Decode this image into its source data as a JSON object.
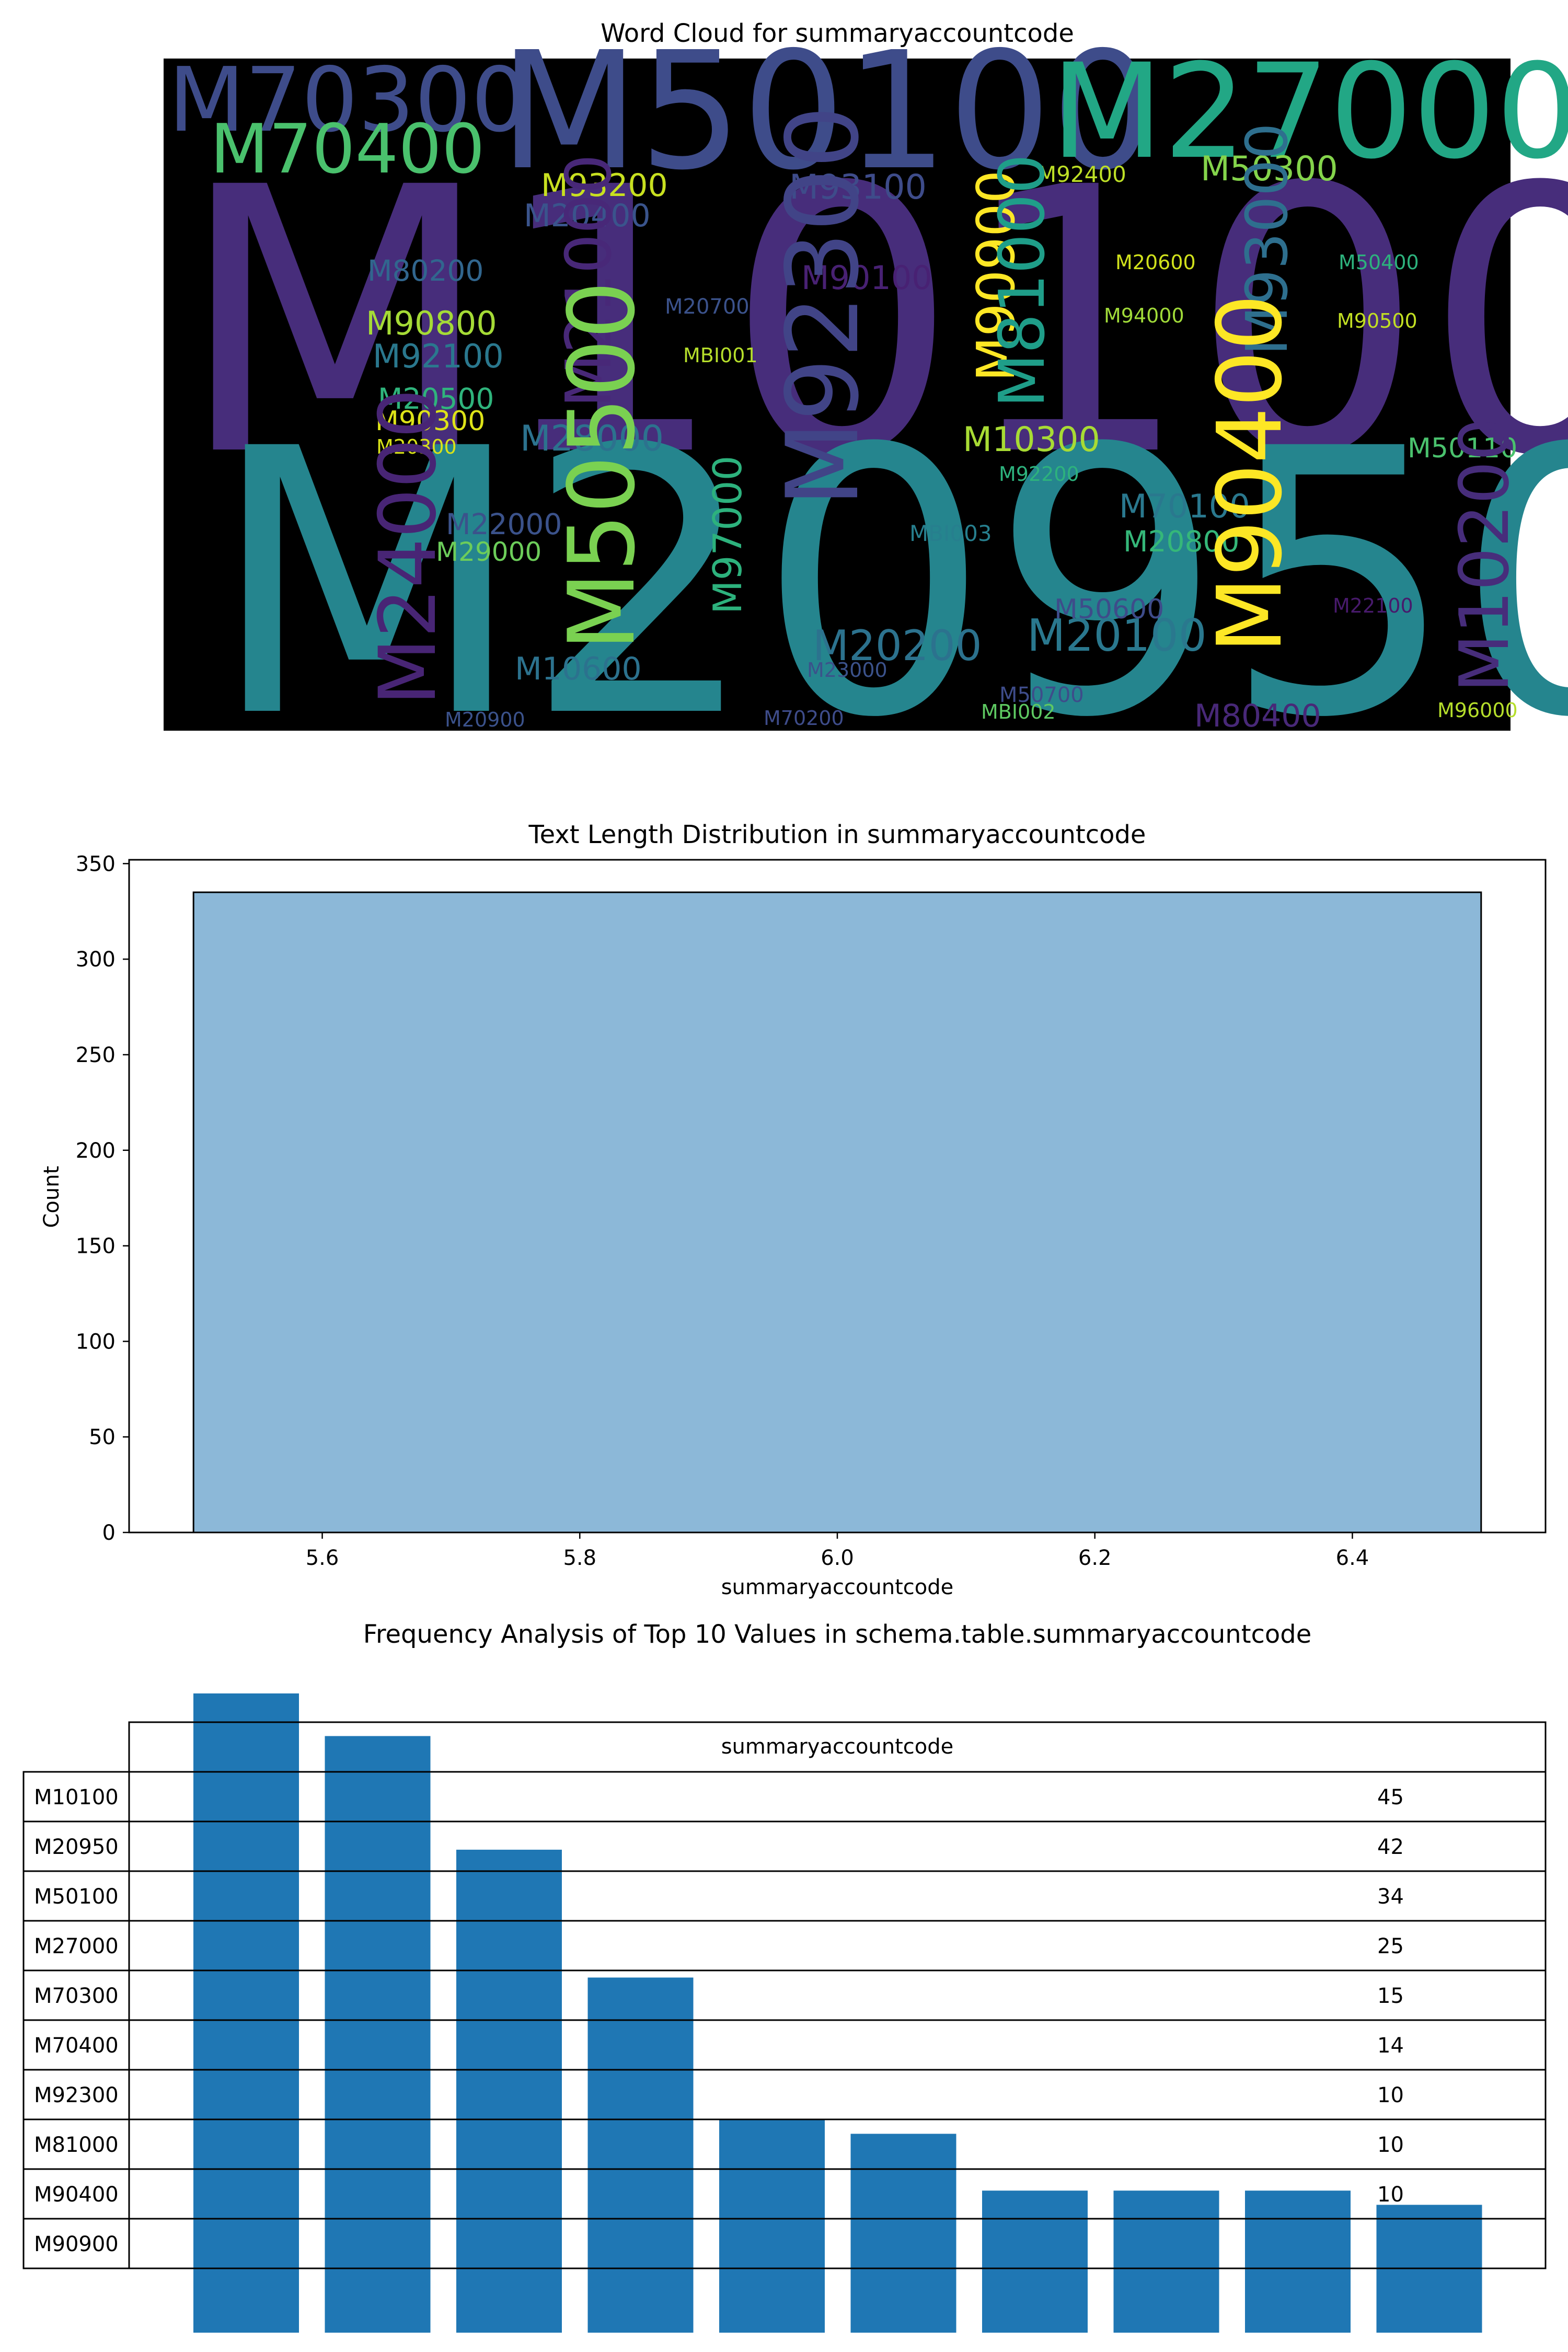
{
  "chart_data": [
    {
      "type": "wordcloud",
      "title": "Word Cloud for summaryaccountcode",
      "background": "#000000",
      "words": [
        {
          "text": "M10100",
          "color": "#472d7b"
        },
        {
          "text": "M20950",
          "color": "#25858e"
        },
        {
          "text": "M50100",
          "color": "#3e4c8a"
        },
        {
          "text": "M27000",
          "color": "#22a785"
        },
        {
          "text": "M70300",
          "color": "#3e4c8a"
        },
        {
          "text": "M70400",
          "color": "#4ac16d"
        },
        {
          "text": "M93200",
          "color": "#c8e020"
        },
        {
          "text": "M93100",
          "color": "#3e4c8a"
        },
        {
          "text": "M92400",
          "color": "#bddf26"
        },
        {
          "text": "M50300",
          "color": "#84d44b"
        },
        {
          "text": "M20400",
          "color": "#3a548c"
        },
        {
          "text": "M80200",
          "color": "#31668e"
        },
        {
          "text": "M90800",
          "color": "#a5db36"
        },
        {
          "text": "M92100",
          "color": "#2a788e"
        },
        {
          "text": "M20500",
          "color": "#2fb47c"
        },
        {
          "text": "M90300",
          "color": "#dde318"
        },
        {
          "text": "M20300",
          "color": "#d8e219"
        },
        {
          "text": "M28000",
          "color": "#2c728e"
        },
        {
          "text": "M21000",
          "color": "#482878"
        },
        {
          "text": "M20700",
          "color": "#3b528b"
        },
        {
          "text": "MBI001",
          "color": "#b5de2b"
        },
        {
          "text": "M90100",
          "color": "#482173"
        },
        {
          "text": "M92300",
          "color": "#414487"
        },
        {
          "text": "M90900",
          "color": "#fde725"
        },
        {
          "text": "M81000",
          "color": "#1f9e89"
        },
        {
          "text": "M94000",
          "color": "#a0da39"
        },
        {
          "text": "M20600",
          "color": "#d0e11c"
        },
        {
          "text": "M93000",
          "color": "#2e6f8e"
        },
        {
          "text": "M50400",
          "color": "#2db27d"
        },
        {
          "text": "M90500",
          "color": "#c2df23"
        },
        {
          "text": "M10300",
          "color": "#a8db34"
        },
        {
          "text": "M50110",
          "color": "#4ac16d"
        },
        {
          "text": "M92200",
          "color": "#2db27d"
        },
        {
          "text": "M24000",
          "color": "#482575"
        },
        {
          "text": "M22000",
          "color": "#3b528b"
        },
        {
          "text": "M29000",
          "color": "#6ccd5a"
        },
        {
          "text": "M50500",
          "color": "#7ad151"
        },
        {
          "text": "M97000",
          "color": "#2db27d"
        },
        {
          "text": "MBI003",
          "color": "#277f8e"
        },
        {
          "text": "M70100",
          "color": "#2a788e"
        },
        {
          "text": "M20800",
          "color": "#35b779"
        },
        {
          "text": "M90400",
          "color": "#fde725"
        },
        {
          "text": "M10200",
          "color": "#472d7b"
        },
        {
          "text": "M10600",
          "color": "#2c728e"
        },
        {
          "text": "M20200",
          "color": "#2c728e"
        },
        {
          "text": "M50600",
          "color": "#3e4c8a"
        },
        {
          "text": "M20100",
          "color": "#2a788e"
        },
        {
          "text": "M22100",
          "color": "#481a6c"
        },
        {
          "text": "M23000",
          "color": "#3b528b"
        },
        {
          "text": "M50700",
          "color": "#3e4c8a"
        },
        {
          "text": "MBI002",
          "color": "#5ec962"
        },
        {
          "text": "M80400",
          "color": "#482878"
        },
        {
          "text": "M96000",
          "color": "#b5de2b"
        },
        {
          "text": "M20900",
          "color": "#3b528b"
        },
        {
          "text": "M70200",
          "color": "#3e4c8a"
        }
      ]
    },
    {
      "type": "bar",
      "title": "Text Length Distribution in summaryaccountcode",
      "xlabel": "summaryaccountcode",
      "ylabel": "Count",
      "bins": [
        {
          "x0": 5.5,
          "x1": 6.5,
          "count": 335
        }
      ],
      "xlim": [
        5.45,
        6.55
      ],
      "ylim": [
        0,
        352
      ],
      "xticks": [
        5.6,
        5.8,
        6.0,
        6.2,
        6.4
      ],
      "xtick_labels": [
        "5.6",
        "5.8",
        "6.0",
        "6.2",
        "6.4"
      ],
      "yticks": [
        0,
        50,
        100,
        150,
        200,
        250,
        300,
        350
      ],
      "bar_color": "#8cb8d8",
      "grid": false
    },
    {
      "type": "bar",
      "title": "Frequency Analysis of Top 10 Values in schema.table.summaryaccountcode",
      "categories": [
        "M10100",
        "M20950",
        "M50100",
        "M27000",
        "M70300",
        "M70400",
        "M92300",
        "M81000",
        "M90400",
        "M90900"
      ],
      "values": [
        45,
        42,
        34,
        25,
        15,
        14,
        10,
        10,
        10,
        9
      ],
      "ylim": [
        0,
        45
      ],
      "bar_color": "#1f77b4",
      "table": {
        "column_header": "summaryaccountcode",
        "row_labels": [
          "M10100",
          "M20950",
          "M50100",
          "M27000",
          "M70300",
          "M70400",
          "M92300",
          "M81000",
          "M90400",
          "M90900"
        ],
        "cells": [
          "45",
          "42",
          "34",
          "25",
          "15",
          "14",
          "10",
          "10",
          "10",
          ""
        ]
      }
    }
  ]
}
